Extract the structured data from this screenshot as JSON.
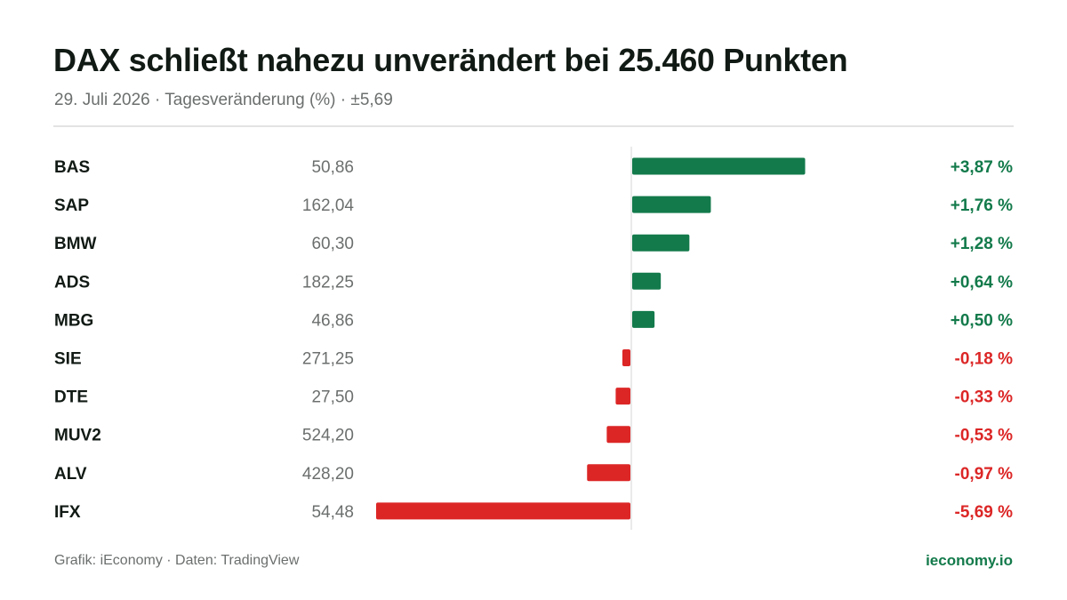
{
  "header": {
    "title": "DAX schließt nahezu unverändert bei 25.460 Punkten",
    "subtitle": "29. Juli 2026 · Tagesveränderung (%) · ±5,69"
  },
  "colors": {
    "positive": "#137a4b",
    "negative": "#dc2626",
    "ticker_text": "#111a14",
    "price_text": "#6b6f6d",
    "zero_line": "#d6d6d6"
  },
  "chart_data": {
    "type": "bar",
    "orientation": "horizontal",
    "categories": [
      "BAS",
      "SAP",
      "BMW",
      "ADS",
      "MBG",
      "SIE",
      "DTE",
      "MUV2",
      "ALV",
      "IFX"
    ],
    "prices": [
      "50,86",
      "162,04",
      "60,30",
      "182,25",
      "46,86",
      "271,25",
      "27,50",
      "524,20",
      "428,20",
      "54,48"
    ],
    "values": [
      3.87,
      1.76,
      1.28,
      0.64,
      0.5,
      -0.18,
      -0.33,
      -0.53,
      -0.97,
      -5.69
    ],
    "value_labels": [
      "+3,87 %",
      "+1,76 %",
      "+1,28 %",
      "+0,64 %",
      "+0,50 %",
      "-0,18 %",
      "-0,33 %",
      "-0,53 %",
      "-0,97 %",
      "-5,69 %"
    ],
    "xlim": [
      -5.69,
      5.69
    ],
    "grid": false,
    "zero_line": true
  },
  "footer": {
    "source": "Grafik: iEconomy · Daten: TradingView",
    "brand": "ieconomy.io"
  }
}
